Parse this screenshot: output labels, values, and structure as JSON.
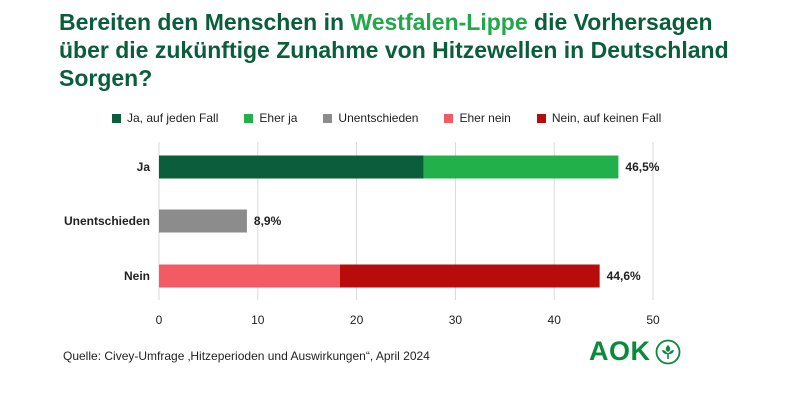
{
  "title": {
    "pre": "Bereiten den Menschen in ",
    "highlight": "Westfalen-Lippe",
    "post": " die Vorhersagen über die zukünftige Zunahme von Hitzewellen in Deutschland Sorgen?"
  },
  "source": "Quelle: Civey-Umfrage ‚Hitzeperioden und Auswirkungen“, April 2024",
  "logo": {
    "text": "AOK",
    "color": "#0b8a3c"
  },
  "chart_data": {
    "type": "bar",
    "orientation": "horizontal",
    "stacked": true,
    "categories": [
      "Ja",
      "Unentschieden",
      "Nein"
    ],
    "series": [
      {
        "name": "Ja, auf jeden Fall",
        "color": "#0b5e3c",
        "values": [
          26.8,
          0,
          0
        ]
      },
      {
        "name": "Eher ja",
        "color": "#22b04b",
        "values": [
          19.7,
          0,
          0
        ]
      },
      {
        "name": "Unentschieden",
        "color": "#8c8c8c",
        "values": [
          0,
          8.9,
          0
        ]
      },
      {
        "name": "Eher nein",
        "color": "#f25a64",
        "values": [
          0,
          0,
          18.3
        ]
      },
      {
        "name": "Nein, auf keinen Fall",
        "color": "#b80b0b",
        "values": [
          0,
          0,
          26.3
        ]
      }
    ],
    "totals": [
      46.5,
      8.9,
      44.6
    ],
    "total_labels": [
      "46,5%",
      "8,9%",
      "44,6%"
    ],
    "xlim": [
      0,
      50
    ],
    "xticks": [
      0,
      10,
      20,
      30,
      40,
      50
    ],
    "grid": true,
    "legend_position": "top"
  }
}
